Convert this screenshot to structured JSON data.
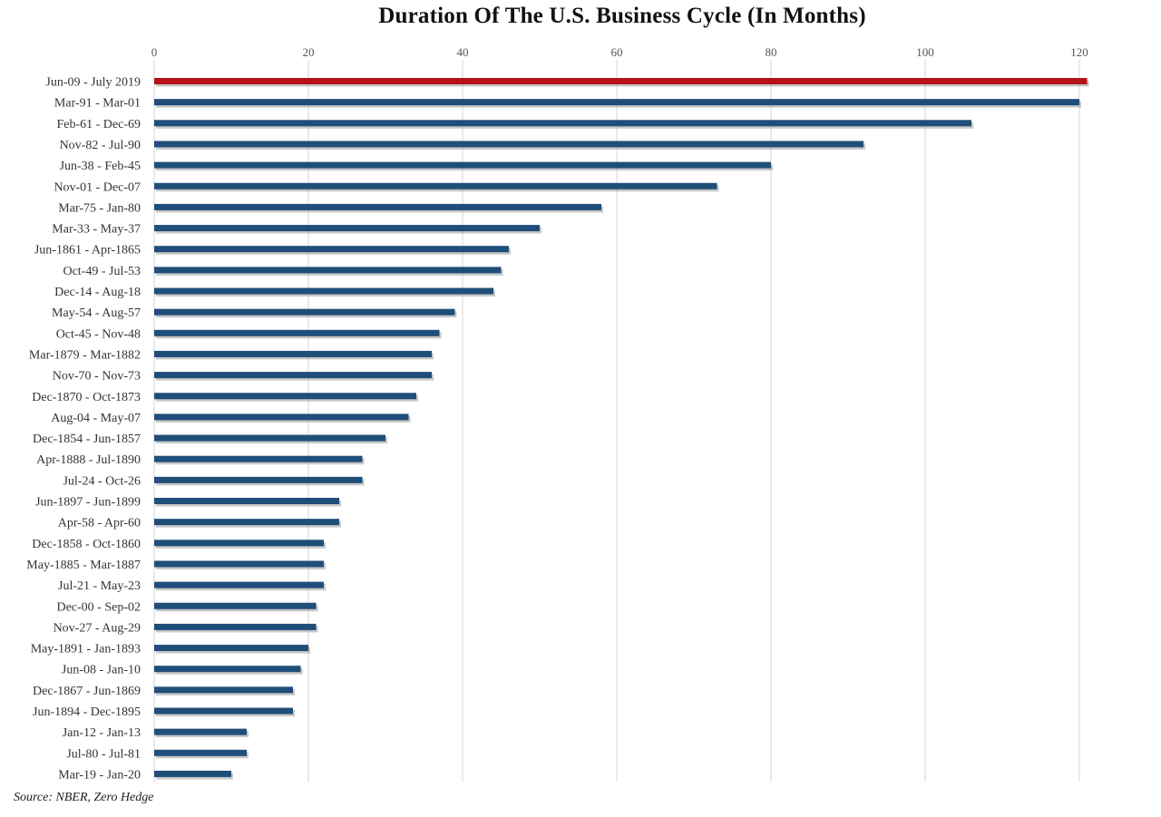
{
  "chart_data": {
    "type": "bar",
    "orientation": "horizontal",
    "title": "Duration Of  The U.S. Business Cycle (In Months)",
    "source": "Source: NBER, Zero Hedge",
    "xlim": [
      0,
      120
    ],
    "xticks": [
      0,
      20,
      40,
      60,
      80,
      100,
      120
    ],
    "x_axis_position": "top",
    "grid": true,
    "colors": {
      "highlight": "#b5121b",
      "bar": "#1f4e79",
      "shadow": "#9a9a9a",
      "grid": "#d6d6d6"
    },
    "categories": [
      "Jun-09 - July 2019",
      "Mar-91 - Mar-01",
      "Feb-61 - Dec-69",
      "Nov-82 - Jul-90",
      "Jun-38 - Feb-45",
      "Nov-01 - Dec-07",
      "Mar-75 - Jan-80",
      "Mar-33 - May-37",
      "Jun-1861 - Apr-1865",
      "Oct-49 - Jul-53",
      "Dec-14 - Aug-18",
      "May-54 - Aug-57",
      "Oct-45 - Nov-48",
      "Mar-1879 - Mar-1882",
      "Nov-70 - Nov-73",
      "Dec-1870 - Oct-1873",
      "Aug-04 - May-07",
      "Dec-1854 - Jun-1857",
      "Apr-1888 - Jul-1890",
      "Jul-24 - Oct-26",
      "Jun-1897 - Jun-1899",
      "Apr-58 - Apr-60",
      "Dec-1858 - Oct-1860",
      "May-1885 - Mar-1887",
      "Jul-21 - May-23",
      "Dec-00 - Sep-02",
      "Nov-27 - Aug-29",
      "May-1891 - Jan-1893",
      "Jun-08 - Jan-10",
      "Dec-1867 - Jun-1869",
      "Jun-1894 - Dec-1895",
      "Jan-12 - Jan-13",
      "Jul-80 - Jul-81",
      "Mar-19 - Jan-20"
    ],
    "values": [
      121,
      120,
      106,
      92,
      80,
      73,
      58,
      50,
      46,
      45,
      44,
      39,
      37,
      36,
      36,
      34,
      33,
      30,
      27,
      27,
      24,
      24,
      22,
      22,
      22,
      21,
      21,
      20,
      19,
      18,
      18,
      12,
      12,
      10
    ],
    "highlight_index": 0
  }
}
